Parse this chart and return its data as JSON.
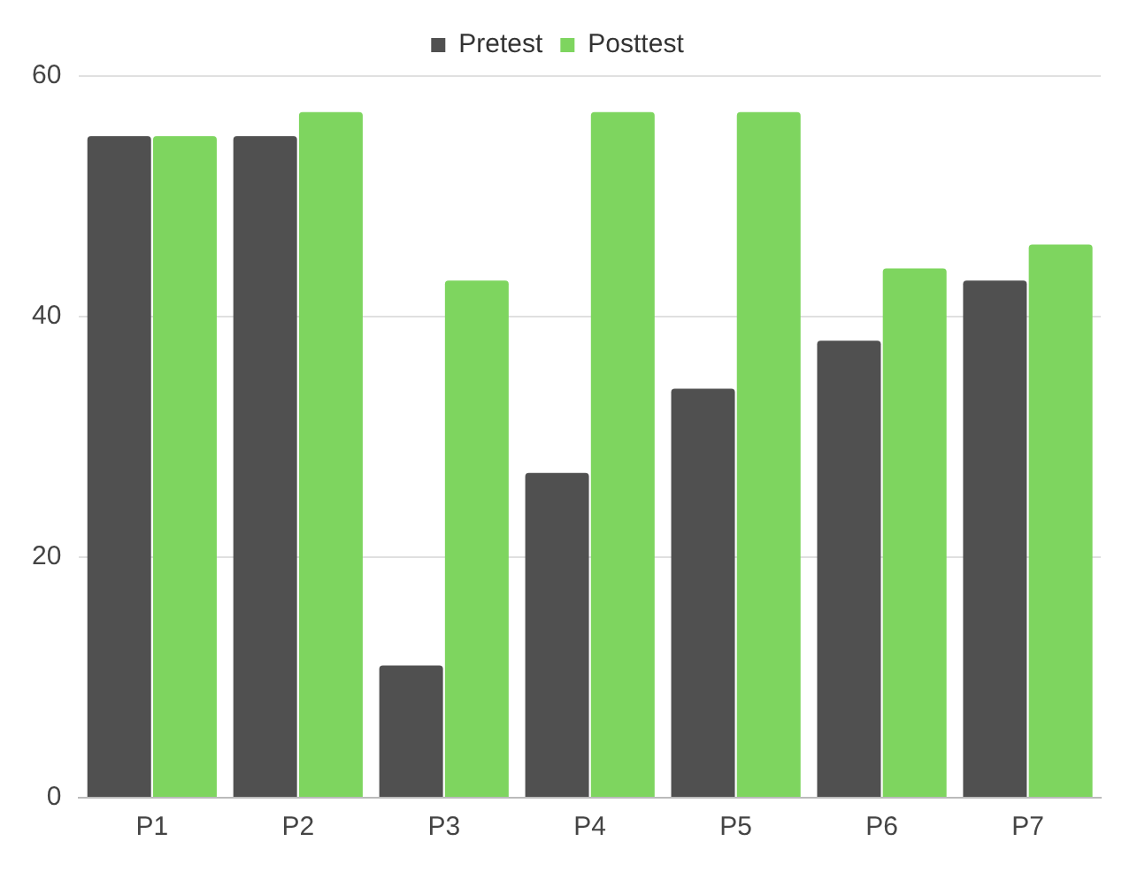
{
  "chart_data": {
    "type": "bar",
    "categories": [
      "P1",
      "P2",
      "P3",
      "P4",
      "P5",
      "P6",
      "P7"
    ],
    "series": [
      {
        "name": "Pretest",
        "color": "#505050",
        "values": [
          55,
          55,
          11,
          27,
          34,
          38,
          43
        ]
      },
      {
        "name": "Posttest",
        "color": "#7ed55f",
        "values": [
          55,
          57,
          43,
          57,
          57,
          44,
          46
        ]
      }
    ],
    "ylim": [
      0,
      60
    ],
    "yticks": [
      0,
      20,
      40,
      60
    ],
    "grid": "y",
    "legend": "top"
  }
}
